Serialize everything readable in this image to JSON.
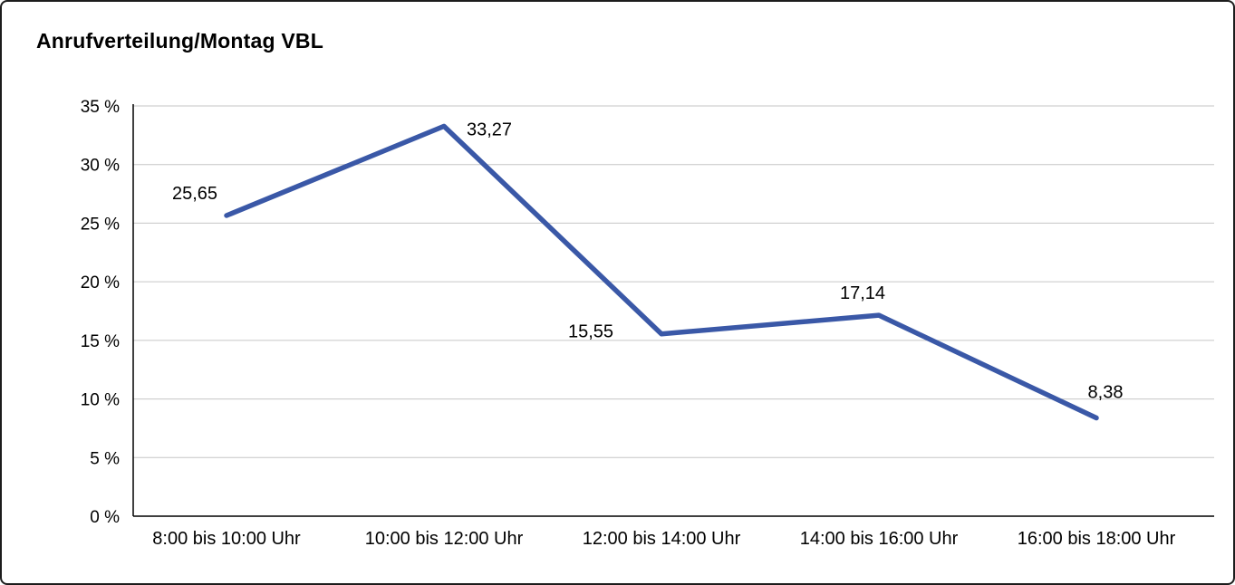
{
  "title": "Anrufverteilung/Montag VBL",
  "chart_data": {
    "type": "line",
    "title": "Anrufverteilung/Montag VBL",
    "categories": [
      "8:00 bis 10:00 Uhr",
      "10:00 bis 12:00 Uhr",
      "12:00 bis 14:00 Uhr",
      "14:00 bis 16:00 Uhr",
      "16:00 bis 18:00 Uhr"
    ],
    "values": [
      25.65,
      33.27,
      15.55,
      17.14,
      8.38
    ],
    "value_labels": [
      "25,65",
      "33,27",
      "15,55",
      "17,14",
      "8,38"
    ],
    "xlabel": "",
    "ylabel": "",
    "ylim": [
      0,
      35
    ],
    "ytick_step": 5,
    "ytick_suffix": " %",
    "ytick_labels": [
      "0 %",
      "5 %",
      "10 %",
      "15 %",
      "20 %",
      "25 %",
      "30 %",
      "35 %"
    ],
    "grid": true,
    "legend_position": "none",
    "line_color": "#3a58a7",
    "grid_color": "#c6c6c6",
    "axis_color": "#000000"
  }
}
